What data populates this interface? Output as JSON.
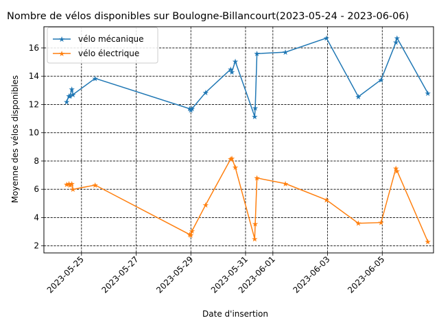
{
  "chart_data": {
    "type": "line",
    "title": "Nombre de vélos disponibles sur Boulogne-Billancourt(2023-05-24 - 2023-06-06)",
    "xlabel": "Date d'insertion",
    "ylabel": "Moyenne des vélos disponibles",
    "x_is_date": true,
    "xlim": [
      "2023-05-23T15:00",
      "2023-06-06T21:00"
    ],
    "ylim": [
      1.5,
      17.5
    ],
    "xticks": [
      "2023-05-25",
      "2023-05-27",
      "2023-05-29",
      "2023-05-31",
      "2023-06-01",
      "2023-06-03",
      "2023-06-05"
    ],
    "yticks": [
      2,
      4,
      6,
      8,
      10,
      12,
      14,
      16
    ],
    "grid": true,
    "grid_style": "dashed",
    "legend_position": "upper-left",
    "series": [
      {
        "name": "vélo mécanique",
        "color": "#1f77b4",
        "marker": "star",
        "x": [
          "2023-05-24T11:00",
          "2023-05-24T13:00",
          "2023-05-24T14:00",
          "2023-05-24T15:30",
          "2023-05-24T16:30",
          "2023-05-25T12:00",
          "2023-05-28T23:00",
          "2023-05-29T00:00",
          "2023-05-29T01:00",
          "2023-05-29T13:00",
          "2023-05-30T11:00",
          "2023-05-30T12:00",
          "2023-05-30T15:00",
          "2023-05-31T08:00",
          "2023-05-31T08:30",
          "2023-05-31T10:00",
          "2023-06-01T11:00",
          "2023-06-02T23:00",
          "2023-06-04T03:00",
          "2023-06-04T23:00",
          "2023-06-05T12:00",
          "2023-06-05T13:00",
          "2023-06-06T16:00"
        ],
        "y": [
          12.2,
          12.6,
          12.6,
          13.1,
          12.7,
          13.85,
          11.7,
          11.6,
          11.7,
          12.85,
          14.5,
          14.3,
          15.05,
          11.15,
          11.75,
          15.6,
          15.7,
          16.7,
          12.55,
          13.75,
          16.4,
          16.7,
          12.8
        ]
      },
      {
        "name": "vélo électrique",
        "color": "#ff7f0e",
        "marker": "star",
        "x": [
          "2023-05-24T11:00",
          "2023-05-24T13:00",
          "2023-05-24T14:00",
          "2023-05-24T15:30",
          "2023-05-24T16:30",
          "2023-05-25T12:00",
          "2023-05-28T23:00",
          "2023-05-29T00:00",
          "2023-05-29T01:00",
          "2023-05-29T13:00",
          "2023-05-30T11:00",
          "2023-05-30T12:00",
          "2023-05-30T15:00",
          "2023-05-31T08:00",
          "2023-05-31T08:30",
          "2023-05-31T10:00",
          "2023-06-01T11:00",
          "2023-06-02T23:00",
          "2023-06-04T03:00",
          "2023-06-04T23:00",
          "2023-06-05T12:00",
          "2023-06-05T13:00",
          "2023-06-06T16:00"
        ],
        "y": [
          6.35,
          6.4,
          6.3,
          6.4,
          6.0,
          6.3,
          2.8,
          2.75,
          3.05,
          4.9,
          8.15,
          8.2,
          7.55,
          2.5,
          3.55,
          6.8,
          6.4,
          5.25,
          3.6,
          3.65,
          7.5,
          7.3,
          2.3
        ]
      }
    ]
  }
}
